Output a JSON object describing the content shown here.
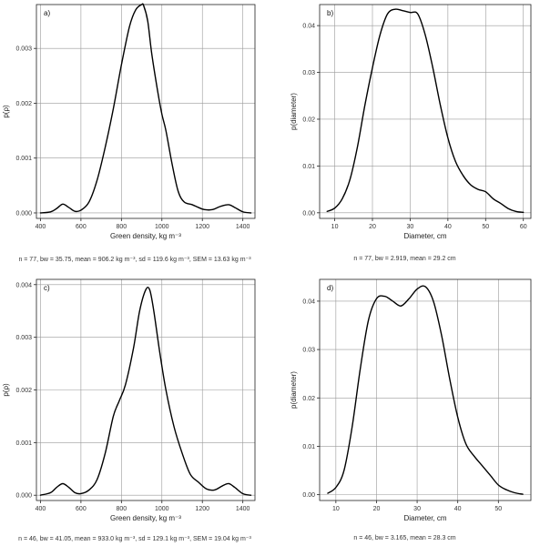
{
  "chart_data": [
    {
      "type": "line",
      "panel_label": "a)",
      "xlabel": "Green density, kg m⁻³",
      "ylabel": "p(ρ)",
      "xlim": [
        380,
        1460
      ],
      "ylim": [
        -0.0001,
        0.0038
      ],
      "xticks": [
        400,
        600,
        800,
        1000,
        1200,
        1400
      ],
      "yticks": [
        0.0,
        0.001,
        0.002,
        0.003
      ],
      "ytick_labels": [
        "0.000",
        "0.001",
        "0.002",
        "0.003"
      ],
      "grid": true,
      "caption": "n = 77, bw = 35.75, mean = 906.2 kg m⁻³, sd = 119.6 kg m⁻³, SEM = 13.63 kg m⁻³",
      "series": [
        {
          "x": [
            400,
            450,
            480,
            510,
            540,
            570,
            600,
            640,
            680,
            720,
            760,
            800,
            840,
            870,
            900,
            910,
            930,
            950,
            980,
            1000,
            1020,
            1050,
            1080,
            1110,
            1150,
            1180,
            1210,
            1250,
            1290,
            1330,
            1360,
            1400,
            1440
          ],
          "y": [
            0.0,
            2e-05,
            8e-05,
            0.00016,
            0.0001,
            3e-05,
            5e-05,
            0.0002,
            0.0006,
            0.0012,
            0.0019,
            0.0027,
            0.0034,
            0.0037,
            0.0038,
            0.00378,
            0.0035,
            0.0029,
            0.0022,
            0.0018,
            0.0015,
            0.0009,
            0.0004,
            0.0002,
            0.00015,
            0.0001,
            6e-05,
            6e-05,
            0.00012,
            0.00015,
            0.0001,
            2e-05,
            0.0
          ]
        }
      ]
    },
    {
      "type": "line",
      "panel_label": "b)",
      "xlabel": "Diameter, cm",
      "ylabel": "p(diameter)",
      "xlim": [
        6,
        62
      ],
      "ylim": [
        -0.0012,
        0.0445
      ],
      "xticks": [
        10,
        20,
        30,
        40,
        50,
        60
      ],
      "yticks": [
        0.0,
        0.01,
        0.02,
        0.03,
        0.04
      ],
      "ytick_labels": [
        "0.00",
        "0.01",
        "0.02",
        "0.03",
        "0.04"
      ],
      "grid": true,
      "caption": "n = 77, bw = 2.919, mean = 29.2 cm",
      "series": [
        {
          "x": [
            8,
            10,
            12,
            14,
            16,
            18,
            20,
            22,
            24,
            26,
            28,
            30,
            32,
            34,
            36,
            38,
            40,
            42,
            44,
            46,
            48,
            50,
            52,
            54,
            56,
            58,
            60
          ],
          "y": [
            0.0003,
            0.001,
            0.003,
            0.007,
            0.014,
            0.023,
            0.031,
            0.038,
            0.0425,
            0.0435,
            0.0432,
            0.0428,
            0.0425,
            0.038,
            0.031,
            0.023,
            0.016,
            0.011,
            0.008,
            0.006,
            0.005,
            0.0045,
            0.003,
            0.002,
            0.0009,
            0.0003,
            0.0001
          ]
        }
      ]
    },
    {
      "type": "line",
      "panel_label": "c)",
      "xlabel": "Green density, kg m⁻³",
      "ylabel": "p(ρ)",
      "xlim": [
        380,
        1460
      ],
      "ylim": [
        -0.0001,
        0.0041
      ],
      "xticks": [
        400,
        600,
        800,
        1000,
        1200,
        1400
      ],
      "yticks": [
        0.0,
        0.001,
        0.002,
        0.003,
        0.004
      ],
      "ytick_labels": [
        "0.000",
        "0.001",
        "0.002",
        "0.003",
        "0.004"
      ],
      "grid": true,
      "caption": "n = 46, bw = 41.05, mean = 933.0 kg m⁻³, sd = 129.1 kg m⁻³, SEM = 19.04 kg m⁻³",
      "series": [
        {
          "x": [
            400,
            450,
            480,
            510,
            540,
            570,
            600,
            640,
            680,
            720,
            760,
            790,
            820,
            860,
            890,
            920,
            940,
            960,
            990,
            1020,
            1060,
            1100,
            1140,
            1180,
            1220,
            1260,
            1300,
            1330,
            1360,
            1400,
            1440
          ],
          "y": [
            0.0,
            5e-05,
            0.00015,
            0.00022,
            0.00015,
            5e-05,
            3e-05,
            0.0001,
            0.0003,
            0.0008,
            0.0015,
            0.0018,
            0.0021,
            0.0028,
            0.0035,
            0.0039,
            0.0039,
            0.0035,
            0.0027,
            0.002,
            0.0013,
            0.0008,
            0.0004,
            0.00025,
            0.00012,
            0.0001,
            0.00018,
            0.00022,
            0.00015,
            3e-05,
            0.0
          ]
        }
      ]
    },
    {
      "type": "line",
      "panel_label": "d)",
      "xlabel": "Diameter, cm",
      "ylabel": "p(diameter)",
      "xlim": [
        6,
        58
      ],
      "ylim": [
        -0.0012,
        0.0445
      ],
      "xticks": [
        10,
        20,
        30,
        40,
        50
      ],
      "yticks": [
        0.0,
        0.01,
        0.02,
        0.03,
        0.04
      ],
      "ytick_labels": [
        "0.00",
        "0.01",
        "0.02",
        "0.03",
        "0.04"
      ],
      "grid": true,
      "caption": "n = 46, bw = 3.165, mean = 28.3 cm",
      "series": [
        {
          "x": [
            8,
            10,
            12,
            14,
            16,
            18,
            20,
            22,
            24,
            26,
            28,
            30,
            32,
            34,
            36,
            38,
            40,
            42,
            44,
            46,
            48,
            50,
            52,
            54,
            56
          ],
          "y": [
            0.0003,
            0.0015,
            0.005,
            0.014,
            0.026,
            0.036,
            0.0405,
            0.041,
            0.04,
            0.039,
            0.0405,
            0.0425,
            0.043,
            0.04,
            0.033,
            0.024,
            0.016,
            0.0105,
            0.008,
            0.006,
            0.004,
            0.002,
            0.001,
            0.0004,
            0.0001
          ]
        }
      ]
    }
  ]
}
